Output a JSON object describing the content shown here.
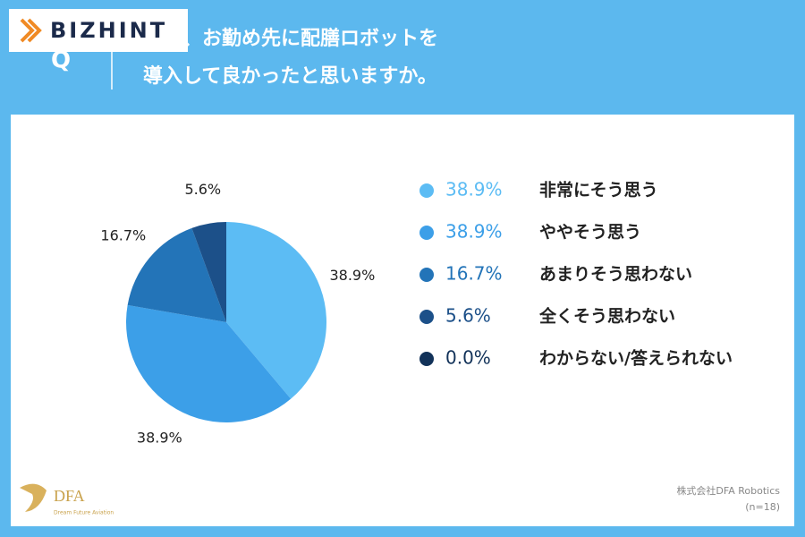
{
  "chart_data": {
    "type": "pie",
    "brand": "BIZHINT",
    "question_mark": "Q",
    "title_lines": [
      "たは、お勤め先に配膳ロボットを",
      "導入して良かったと思いますか。"
    ],
    "categories": [
      "非常にそう思う",
      "ややそう思う",
      "あまりそう思わない",
      "全くそう思わない",
      "わからない/答えられない"
    ],
    "values": [
      38.9,
      38.9,
      16.7,
      5.6,
      0.0
    ],
    "value_labels": [
      "38.9%",
      "38.9%",
      "16.7%",
      "5.6%",
      "0.0%"
    ],
    "colors": [
      "#5cbcf4",
      "#3c9fe8",
      "#2374b8",
      "#1c5089",
      "#123259"
    ],
    "logo_text": "DFA",
    "logo_subtext": "Dream Future Aviation",
    "source": "株式会社DFA Robotics",
    "note": "(n=18)"
  }
}
